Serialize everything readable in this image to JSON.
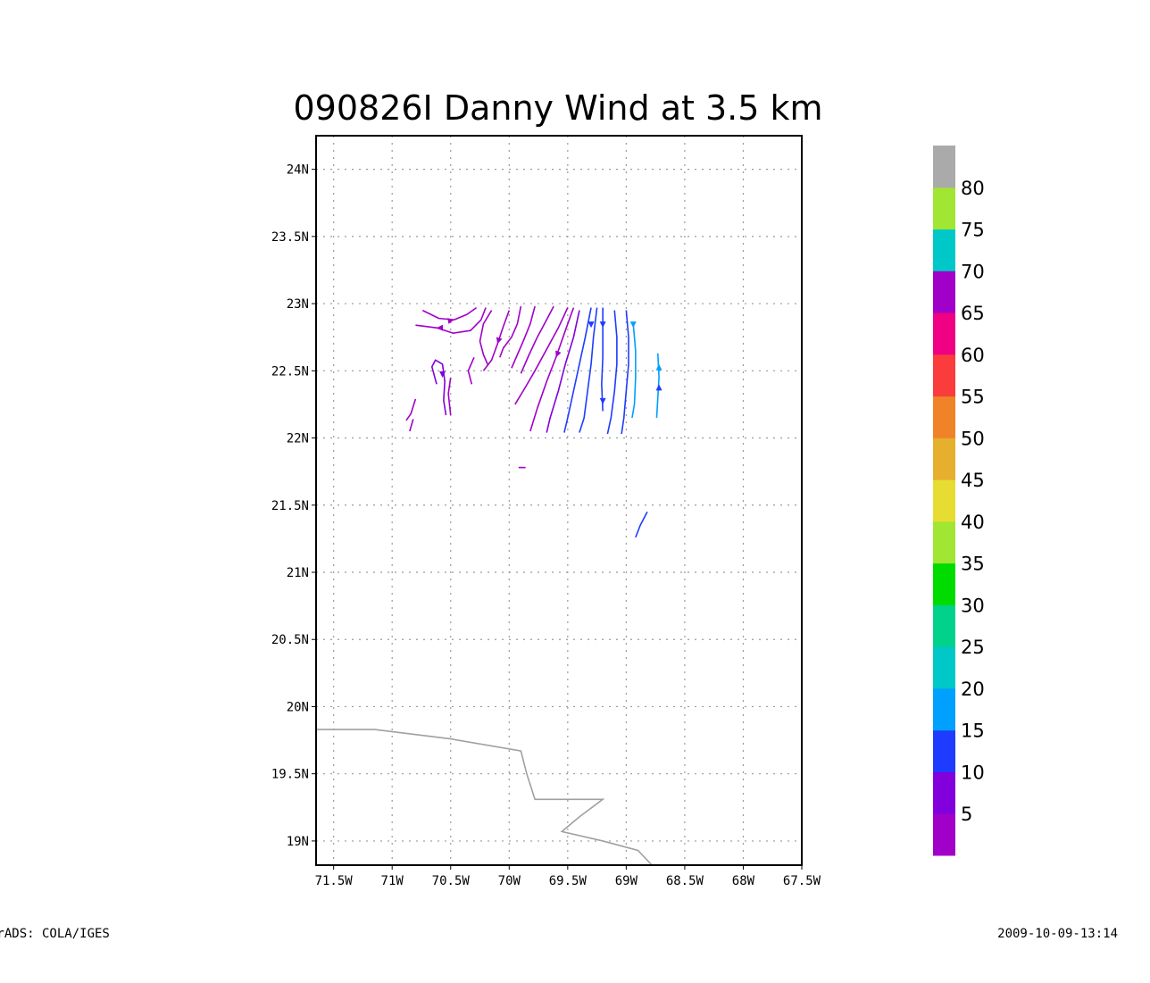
{
  "chart_data": {
    "type": "streamline",
    "title": "090826I Danny Wind at 3.5 km",
    "x_ticks": [
      "71.5W",
      "71W",
      "70.5W",
      "70W",
      "69.5W",
      "69W",
      "68.5W",
      "68W",
      "67.5W"
    ],
    "y_ticks": [
      "24N",
      "23.5N",
      "23N",
      "22.5N",
      "22N",
      "21.5N",
      "21N",
      "20.5N",
      "20N",
      "19.5N",
      "19N"
    ],
    "xlim": [
      -71.65,
      -67.5
    ],
    "ylim": [
      18.82,
      24.25
    ],
    "grid": true,
    "colorbar": {
      "labels": [
        "5",
        "10",
        "15",
        "20",
        "25",
        "30",
        "35",
        "40",
        "45",
        "50",
        "55",
        "60",
        "65",
        "70",
        "75",
        "80"
      ],
      "colors": [
        "#a000c8",
        "#8200dc",
        "#1e3cff",
        "#00a0ff",
        "#00c8c8",
        "#00d28c",
        "#00dc00",
        "#a0e632",
        "#e6dc32",
        "#e6af2d",
        "#f08228",
        "#fa3c3c",
        "#f00082",
        "#a000c8",
        "#00c8c8",
        "#a0e632",
        "#aaaaaa"
      ]
    },
    "coastline": [
      [
        -71.65,
        19.83
      ],
      [
        -71.15,
        19.83
      ],
      [
        -70.5,
        19.76
      ],
      [
        -69.9,
        19.67
      ],
      [
        -69.85,
        19.5
      ],
      [
        -69.78,
        19.31
      ],
      [
        -69.2,
        19.31
      ],
      [
        -69.4,
        19.18
      ],
      [
        -69.55,
        19.07
      ],
      [
        -69.2,
        19.0
      ],
      [
        -68.9,
        18.93
      ],
      [
        -68.78,
        18.82
      ]
    ],
    "streamlines": [
      {
        "color": "#a000c8",
        "points": [
          [
            -70.74,
            22.95
          ],
          [
            -70.6,
            22.89
          ],
          [
            -70.47,
            22.88
          ],
          [
            -70.36,
            22.92
          ],
          [
            -70.28,
            22.97
          ]
        ]
      },
      {
        "color": "#a000c8",
        "points": [
          [
            -70.8,
            22.84
          ],
          [
            -70.62,
            22.82
          ],
          [
            -70.48,
            22.78
          ],
          [
            -70.33,
            22.8
          ],
          [
            -70.24,
            22.88
          ],
          [
            -70.2,
            22.97
          ]
        ]
      },
      {
        "color": "#a000c8",
        "points": [
          [
            -70.15,
            22.95
          ],
          [
            -70.22,
            22.85
          ],
          [
            -70.25,
            22.72
          ],
          [
            -70.22,
            22.62
          ],
          [
            -70.18,
            22.54
          ]
        ]
      },
      {
        "color": "#a000c8",
        "points": [
          [
            -70.0,
            22.95
          ],
          [
            -70.05,
            22.83
          ],
          [
            -70.1,
            22.7
          ],
          [
            -70.15,
            22.58
          ],
          [
            -70.22,
            22.5
          ]
        ]
      },
      {
        "color": "#a000c8",
        "points": [
          [
            -69.9,
            22.98
          ],
          [
            -69.93,
            22.85
          ],
          [
            -69.98,
            22.75
          ],
          [
            -70.05,
            22.67
          ],
          [
            -70.08,
            22.6
          ]
        ]
      },
      {
        "color": "#a000c8",
        "points": [
          [
            -69.78,
            22.98
          ],
          [
            -69.82,
            22.85
          ],
          [
            -69.88,
            22.72
          ],
          [
            -69.93,
            22.62
          ],
          [
            -69.98,
            22.52
          ]
        ]
      },
      {
        "color": "#a000c8",
        "points": [
          [
            -69.62,
            22.98
          ],
          [
            -69.68,
            22.88
          ],
          [
            -69.76,
            22.75
          ],
          [
            -69.83,
            22.62
          ],
          [
            -69.9,
            22.48
          ]
        ]
      },
      {
        "color": "#a000c8",
        "points": [
          [
            -69.5,
            22.97
          ],
          [
            -69.58,
            22.82
          ],
          [
            -69.68,
            22.66
          ],
          [
            -69.78,
            22.5
          ],
          [
            -69.86,
            22.38
          ],
          [
            -69.95,
            22.25
          ]
        ]
      },
      {
        "color": "#a000c8",
        "points": [
          [
            -69.45,
            22.97
          ],
          [
            -69.52,
            22.8
          ],
          [
            -69.6,
            22.6
          ],
          [
            -69.68,
            22.42
          ],
          [
            -69.76,
            22.22
          ],
          [
            -69.82,
            22.05
          ]
        ]
      },
      {
        "color": "#8200dc",
        "points": [
          [
            -69.4,
            22.95
          ],
          [
            -69.45,
            22.75
          ],
          [
            -69.52,
            22.55
          ],
          [
            -69.58,
            22.35
          ],
          [
            -69.65,
            22.15
          ],
          [
            -69.68,
            22.04
          ]
        ]
      },
      {
        "color": "#1e3cff",
        "points": [
          [
            -69.3,
            22.97
          ],
          [
            -69.35,
            22.75
          ],
          [
            -69.4,
            22.55
          ],
          [
            -69.45,
            22.35
          ],
          [
            -69.5,
            22.15
          ],
          [
            -69.53,
            22.04
          ]
        ]
      },
      {
        "color": "#1e3cff",
        "points": [
          [
            -69.25,
            22.97
          ],
          [
            -69.28,
            22.75
          ],
          [
            -69.3,
            22.55
          ],
          [
            -69.33,
            22.35
          ],
          [
            -69.36,
            22.15
          ],
          [
            -69.4,
            22.04
          ]
        ]
      },
      {
        "color": "#1e3cff",
        "points": [
          [
            -69.2,
            22.97
          ],
          [
            -69.2,
            22.8
          ],
          [
            -69.2,
            22.6
          ],
          [
            -69.21,
            22.4
          ],
          [
            -69.2,
            22.2
          ]
        ]
      },
      {
        "color": "#1e3cff",
        "points": [
          [
            -69.1,
            22.95
          ],
          [
            -69.08,
            22.75
          ],
          [
            -69.08,
            22.55
          ],
          [
            -69.1,
            22.35
          ],
          [
            -69.13,
            22.15
          ],
          [
            -69.16,
            22.03
          ]
        ]
      },
      {
        "color": "#1e3cff",
        "points": [
          [
            -69.0,
            22.95
          ],
          [
            -68.98,
            22.75
          ],
          [
            -68.98,
            22.55
          ],
          [
            -69.0,
            22.35
          ],
          [
            -69.02,
            22.15
          ],
          [
            -69.04,
            22.03
          ]
        ]
      },
      {
        "color": "#00a0ff",
        "points": [
          [
            -68.94,
            22.85
          ],
          [
            -68.92,
            22.65
          ],
          [
            -68.92,
            22.45
          ],
          [
            -68.93,
            22.25
          ],
          [
            -68.95,
            22.15
          ]
        ]
      },
      {
        "color": "#00a0ff",
        "points": [
          [
            -68.73,
            22.63
          ],
          [
            -68.72,
            22.45
          ],
          [
            -68.73,
            22.3
          ],
          [
            -68.74,
            22.15
          ]
        ]
      },
      {
        "color": "#8200dc",
        "points": [
          [
            -70.62,
            22.4
          ],
          [
            -70.66,
            22.53
          ],
          [
            -70.63,
            22.58
          ],
          [
            -70.57,
            22.55
          ],
          [
            -70.55,
            22.42
          ],
          [
            -70.56,
            22.28
          ],
          [
            -70.54,
            22.17
          ]
        ]
      },
      {
        "color": "#a000c8",
        "points": [
          [
            -70.5,
            22.45
          ],
          [
            -70.52,
            22.33
          ],
          [
            -70.5,
            22.17
          ]
        ]
      },
      {
        "color": "#a000c8",
        "points": [
          [
            -70.8,
            22.29
          ],
          [
            -70.84,
            22.18
          ],
          [
            -70.88,
            22.13
          ]
        ]
      },
      {
        "color": "#a000c8",
        "points": [
          [
            -70.82,
            22.14
          ],
          [
            -70.85,
            22.05
          ]
        ]
      },
      {
        "color": "#a000c8",
        "points": [
          [
            -70.3,
            22.6
          ],
          [
            -70.35,
            22.5
          ],
          [
            -70.32,
            22.4
          ]
        ]
      },
      {
        "color": "#a000c8",
        "points": [
          [
            -69.92,
            21.78
          ],
          [
            -69.86,
            21.78
          ]
        ]
      },
      {
        "color": "#1e3cff",
        "points": [
          [
            -68.82,
            21.45
          ],
          [
            -68.88,
            21.35
          ],
          [
            -68.92,
            21.26
          ]
        ]
      }
    ],
    "arrows": [
      {
        "color": "#a000c8",
        "at": [
          -70.47,
          22.88
        ],
        "dir": [
          1,
          0.2
        ]
      },
      {
        "color": "#a000c8",
        "at": [
          -70.62,
          22.82
        ],
        "dir": [
          -1,
          0
        ]
      },
      {
        "color": "#a000c8",
        "at": [
          -70.1,
          22.7
        ],
        "dir": [
          -0.3,
          -1
        ]
      },
      {
        "color": "#a000c8",
        "at": [
          -69.6,
          22.6
        ],
        "dir": [
          -0.4,
          -1
        ]
      },
      {
        "color": "#1e3cff",
        "at": [
          -69.3,
          22.82
        ],
        "dir": [
          0,
          -1
        ]
      },
      {
        "color": "#1e3cff",
        "at": [
          -69.2,
          22.82
        ],
        "dir": [
          0,
          -1
        ]
      },
      {
        "color": "#1e3cff",
        "at": [
          -69.2,
          22.25
        ],
        "dir": [
          0,
          -1
        ]
      },
      {
        "color": "#00a0ff",
        "at": [
          -68.72,
          22.55
        ],
        "dir": [
          0,
          1
        ]
      },
      {
        "color": "#1e3cff",
        "at": [
          -68.72,
          22.4
        ],
        "dir": [
          0,
          1
        ]
      },
      {
        "color": "#00a0ff",
        "at": [
          -68.94,
          22.82
        ],
        "dir": [
          0,
          -1
        ]
      },
      {
        "color": "#8200dc",
        "at": [
          -70.57,
          22.45
        ],
        "dir": [
          0,
          -1
        ]
      }
    ]
  },
  "footer": {
    "left": "GrADS: COLA/IGES",
    "right": "2009-10-09-13:14"
  }
}
